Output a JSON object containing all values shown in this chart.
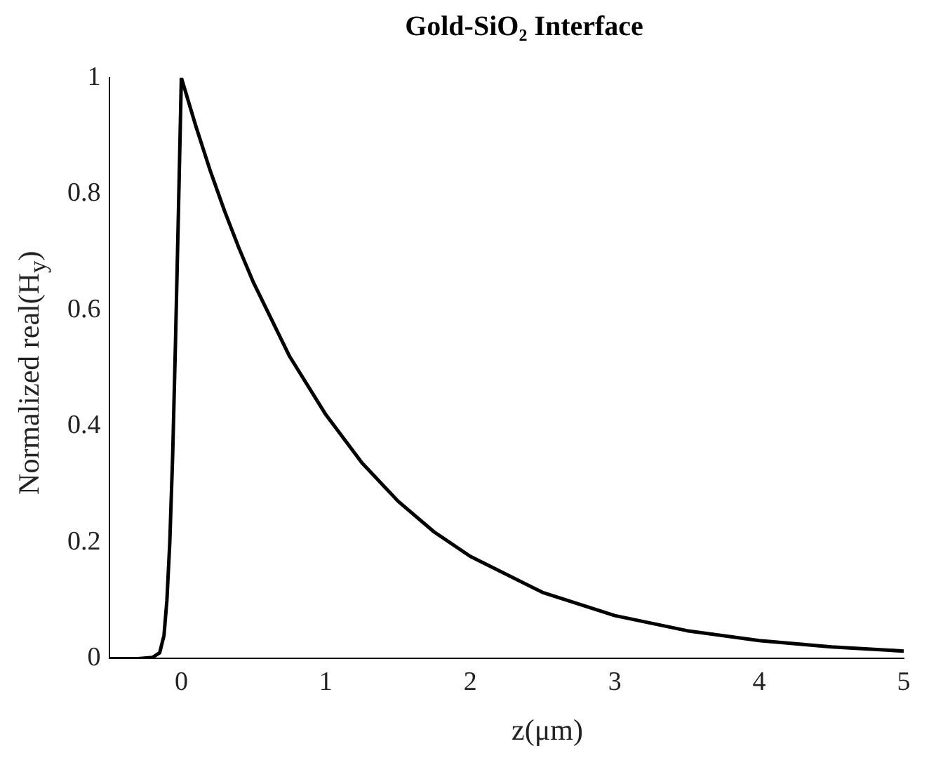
{
  "chart_data": {
    "type": "line",
    "title": "Gold-SiO₂ Interface",
    "xlabel": "z(μm)",
    "ylabel": "Normalized real(H$_{y}$)",
    "x": [
      -0.5,
      -0.3,
      -0.2,
      -0.15,
      -0.12,
      -0.1,
      -0.08,
      -0.06,
      -0.04,
      -0.02,
      0,
      0.1,
      0.2,
      0.3,
      0.4,
      0.5,
      0.75,
      1,
      1.25,
      1.5,
      1.75,
      2,
      2.5,
      3,
      3.5,
      4,
      4.5,
      5
    ],
    "series": [
      {
        "color": "#000000",
        "values": [
          0,
          0,
          0.002,
          0.01,
          0.04,
          0.1,
          0.2,
          0.35,
          0.55,
          0.77,
          1,
          0.917,
          0.84,
          0.77,
          0.706,
          0.647,
          0.52,
          0.42,
          0.337,
          0.271,
          0.218,
          0.176,
          0.114,
          0.074,
          0.048,
          0.031,
          0.02,
          0.013
        ]
      }
    ],
    "xlim": [
      -0.5,
      5
    ],
    "xticks": [
      0,
      1,
      2,
      3,
      4,
      5
    ],
    "ylim": [
      0,
      1
    ],
    "yticks": [
      0,
      0.2,
      0.4,
      0.6,
      0.8,
      1
    ],
    "marker": "none",
    "line_style": "solid",
    "legend": false
  }
}
